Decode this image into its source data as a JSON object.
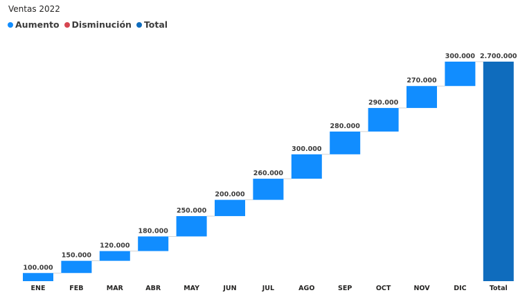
{
  "chart_data": {
    "type": "waterfall",
    "title": "Ventas 2022",
    "categories": [
      "ENE",
      "FEB",
      "MAR",
      "ABR",
      "MAY",
      "JUN",
      "JUL",
      "AGO",
      "SEP",
      "OCT",
      "NOV",
      "DIC"
    ],
    "values": [
      100000,
      150000,
      120000,
      180000,
      250000,
      200000,
      260000,
      300000,
      280000,
      290000,
      270000,
      300000
    ],
    "value_labels": [
      "100.000",
      "150.000",
      "120.000",
      "180.000",
      "250.000",
      "200.000",
      "260.000",
      "300.000",
      "280.000",
      "290.000",
      "270.000",
      "300.000"
    ],
    "total": {
      "category": "Total",
      "value": 2700000,
      "label": "2.700.000"
    },
    "legend": [
      {
        "name": "Aumento",
        "color": "#118dff"
      },
      {
        "name": "Disminución",
        "color": "#d64550"
      },
      {
        "name": "Total",
        "color": "#0f6cbd"
      }
    ],
    "legend_position": "top-left",
    "ylim": [
      0,
      2700000
    ],
    "grid": false,
    "xlabel": "",
    "ylabel": ""
  }
}
